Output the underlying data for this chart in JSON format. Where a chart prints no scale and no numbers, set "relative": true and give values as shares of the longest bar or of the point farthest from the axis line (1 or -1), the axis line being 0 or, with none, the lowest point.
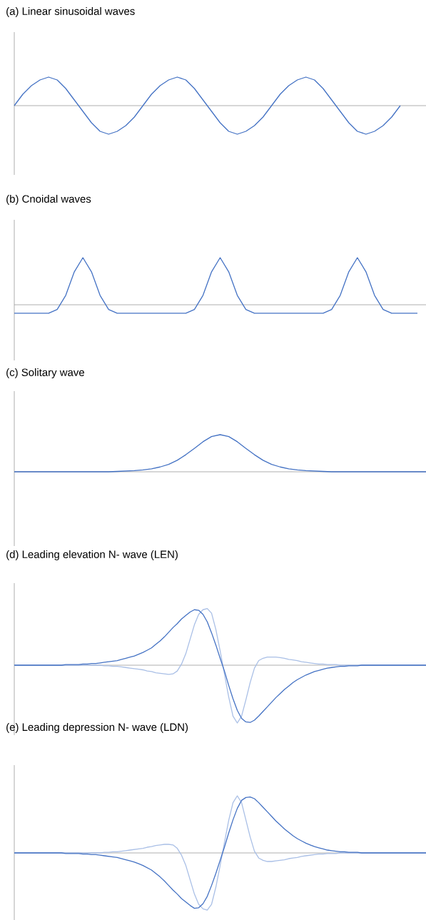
{
  "chart_data": [
    {
      "type": "line",
      "title": "(a)  Linear sinusoidal waves",
      "relative": true,
      "categories": [
        null,
        null,
        null,
        null,
        null,
        null,
        null,
        null,
        null,
        null,
        null,
        null,
        null,
        null,
        null,
        null,
        null,
        null,
        null,
        null,
        null,
        null,
        null,
        null,
        null,
        null,
        null,
        null,
        null,
        null,
        null,
        null,
        null,
        null,
        null,
        null,
        null,
        null,
        null,
        null,
        null,
        null,
        null,
        null,
        null,
        null,
        null,
        null,
        null
      ],
      "series": [
        {
          "color": "#4472c4",
          "values": [
            0,
            0.4,
            0.7,
            0.9,
            1,
            0.9,
            0.6,
            0.2,
            -0.2,
            -0.6,
            -0.9,
            -1,
            -0.9,
            -0.7,
            -0.4,
            0,
            0.4,
            0.7,
            0.9,
            1,
            0.9,
            0.6,
            0.2,
            -0.2,
            -0.6,
            -0.9,
            -1,
            -0.9,
            -0.7,
            -0.4,
            0,
            0.4,
            0.7,
            0.9,
            1,
            0.9,
            0.6,
            0.2,
            -0.2,
            -0.6,
            -0.9,
            -1,
            -0.9,
            -0.7,
            -0.4,
            0,
            null,
            null,
            null
          ]
        }
      ]
    },
    {
      "type": "line",
      "title": "(b)  Cnoidal waves",
      "relative": true,
      "categories": [
        null,
        null,
        null,
        null,
        null,
        null,
        null,
        null,
        null,
        null,
        null,
        null,
        null,
        null,
        null,
        null,
        null,
        null,
        null,
        null,
        null,
        null,
        null,
        null,
        null,
        null,
        null,
        null,
        null,
        null,
        null,
        null,
        null,
        null,
        null,
        null,
        null,
        null,
        null,
        null,
        null,
        null,
        null,
        null,
        null,
        null,
        null,
        null,
        null
      ],
      "series": [
        {
          "color": "#4472c4",
          "values": [
            -0.18,
            -0.18,
            -0.18,
            -0.18,
            -0.18,
            -0.1,
            0.2,
            0.7,
            1,
            0.7,
            0.2,
            -0.1,
            -0.18,
            -0.18,
            -0.18,
            -0.18,
            -0.18,
            -0.18,
            -0.18,
            -0.18,
            -0.18,
            -0.1,
            0.2,
            0.7,
            1,
            0.7,
            0.2,
            -0.1,
            -0.18,
            -0.18,
            -0.18,
            -0.18,
            -0.18,
            -0.18,
            -0.18,
            -0.18,
            -0.18,
            -0.1,
            0.2,
            0.7,
            1,
            0.7,
            0.2,
            -0.1,
            -0.18,
            -0.18,
            -0.18,
            -0.18,
            null
          ]
        }
      ]
    },
    {
      "type": "line",
      "title": "(c)  Solitary wave",
      "relative": true,
      "categories": [
        null,
        null,
        null,
        null,
        null,
        null,
        null,
        null,
        null,
        null,
        null,
        null,
        null,
        null,
        null,
        null,
        null,
        null,
        null,
        null,
        null,
        null,
        null,
        null,
        null,
        null,
        null,
        null,
        null,
        null,
        null,
        null,
        null,
        null,
        null,
        null,
        null,
        null,
        null,
        null,
        null,
        null,
        null,
        null,
        null,
        null,
        null,
        null,
        null
      ],
      "series": [
        {
          "color": "#4472c4",
          "values": [
            0,
            0,
            0,
            0,
            0,
            0,
            0,
            0,
            0,
            0,
            0,
            0,
            0.01,
            0.02,
            0.03,
            0.05,
            0.08,
            0.13,
            0.2,
            0.31,
            0.46,
            0.63,
            0.81,
            0.95,
            1,
            0.95,
            0.81,
            0.63,
            0.46,
            0.31,
            0.2,
            0.13,
            0.08,
            0.05,
            0.03,
            0.02,
            0.01,
            0,
            0,
            0,
            0,
            0,
            0,
            0,
            0,
            0,
            0,
            0,
            0
          ]
        }
      ]
    },
    {
      "type": "line",
      "title": "(d)  Leading elevation N- wave (LEN)",
      "relative": true,
      "categories": [
        null,
        null,
        null,
        null,
        null,
        null,
        null,
        null,
        null,
        null,
        null,
        null,
        null,
        null,
        null,
        null,
        null,
        null,
        null,
        null,
        null,
        null,
        null,
        null,
        null,
        null,
        null,
        null,
        null,
        null,
        null,
        null,
        null,
        null,
        null,
        null,
        null,
        null,
        null,
        null,
        null,
        null,
        null,
        null,
        null,
        null,
        null,
        null,
        null,
        null,
        null,
        null,
        null,
        null,
        null,
        null,
        null,
        null,
        null,
        null,
        null,
        null,
        null,
        null,
        null,
        null,
        null,
        null,
        null,
        null,
        null,
        null,
        null,
        null,
        null,
        null,
        null,
        null,
        null,
        null,
        null,
        null,
        null,
        null,
        null,
        null,
        null,
        null,
        null,
        null,
        null,
        null,
        null,
        null,
        null,
        null,
        null
      ],
      "series": [
        {
          "color": "#a9bfe6",
          "values": [
            0,
            0,
            0,
            0,
            0,
            0,
            0,
            0,
            0,
            0,
            0,
            0,
            0,
            0,
            0,
            0,
            0,
            0,
            0,
            0,
            0,
            -0.01,
            -0.01,
            -0.02,
            -0.02,
            -0.03,
            -0.04,
            -0.05,
            -0.06,
            -0.07,
            -0.08,
            -0.1,
            -0.11,
            -0.13,
            -0.14,
            -0.15,
            -0.16,
            -0.15,
            -0.1,
            0.02,
            0.2,
            0.45,
            0.7,
            0.88,
            0.96,
            0.98,
            0.9,
            0.62,
            0.25,
            -0.15,
            -0.55,
            -0.88,
            -1,
            -0.88,
            -0.6,
            -0.3,
            -0.05,
            0.08,
            0.12,
            0.14,
            0.14,
            0.14,
            0.13,
            0.12,
            0.1,
            0.09,
            0.08,
            0.06,
            0.05,
            0.04,
            0.03,
            0.02,
            0.02,
            0.01,
            0.01,
            0.01,
            0,
            0,
            0,
            0,
            0,
            0,
            0,
            0,
            0,
            0,
            0,
            0,
            0,
            0,
            0,
            0,
            0,
            0,
            0,
            0,
            0
          ]
        },
        {
          "color": "#4472c4",
          "values": [
            0,
            0,
            0,
            0,
            0,
            0,
            0,
            0,
            0,
            0,
            0,
            0,
            0.01,
            0.01,
            0.01,
            0.01,
            0.02,
            0.02,
            0.03,
            0.03,
            0.04,
            0.05,
            0.06,
            0.07,
            0.08,
            0.1,
            0.12,
            0.14,
            0.16,
            0.19,
            0.22,
            0.26,
            0.3,
            0.36,
            0.42,
            0.49,
            0.57,
            0.65,
            0.72,
            0.8,
            0.86,
            0.92,
            0.96,
            0.95,
            0.88,
            0.75,
            0.56,
            0.35,
            0.12,
            -0.1,
            -0.35,
            -0.58,
            -0.78,
            -0.92,
            -0.98,
            -0.99,
            -0.95,
            -0.88,
            -0.8,
            -0.72,
            -0.64,
            -0.56,
            -0.49,
            -0.42,
            -0.36,
            -0.3,
            -0.25,
            -0.21,
            -0.17,
            -0.14,
            -0.11,
            -0.09,
            -0.07,
            -0.05,
            -0.04,
            -0.03,
            -0.02,
            -0.02,
            -0.01,
            -0.01,
            -0.01,
            0,
            0,
            0,
            0,
            0,
            0,
            0,
            0,
            0,
            0,
            0,
            0,
            0,
            0,
            0,
            0
          ]
        }
      ]
    },
    {
      "type": "line",
      "title": "(e)  Leading depression N- wave (LDN)",
      "relative": true,
      "categories": [
        null,
        null,
        null,
        null,
        null,
        null,
        null,
        null,
        null,
        null,
        null,
        null,
        null,
        null,
        null,
        null,
        null,
        null,
        null,
        null,
        null,
        null,
        null,
        null,
        null,
        null,
        null,
        null,
        null,
        null,
        null,
        null,
        null,
        null,
        null,
        null,
        null,
        null,
        null,
        null,
        null,
        null,
        null,
        null,
        null,
        null,
        null,
        null,
        null,
        null,
        null,
        null,
        null,
        null,
        null,
        null,
        null,
        null,
        null,
        null,
        null,
        null,
        null,
        null,
        null,
        null,
        null,
        null,
        null,
        null,
        null,
        null,
        null,
        null,
        null,
        null,
        null,
        null,
        null,
        null,
        null,
        null,
        null,
        null,
        null,
        null,
        null,
        null,
        null,
        null,
        null,
        null,
        null,
        null,
        null,
        null,
        null
      ],
      "series": [
        {
          "color": "#a9bfe6",
          "values": [
            0,
            0,
            0,
            0,
            0,
            0,
            0,
            0,
            0,
            0,
            0,
            0,
            0,
            0,
            0,
            0,
            0,
            0,
            0,
            0,
            0,
            0.01,
            0.01,
            0.02,
            0.02,
            0.03,
            0.04,
            0.05,
            0.06,
            0.07,
            0.08,
            0.1,
            0.11,
            0.13,
            0.14,
            0.15,
            0.15,
            0.14,
            0.08,
            -0.04,
            -0.22,
            -0.47,
            -0.72,
            -0.9,
            -0.98,
            -1,
            -0.9,
            -0.6,
            -0.22,
            0.18,
            0.57,
            0.88,
            1,
            0.88,
            0.58,
            0.28,
            0.03,
            -0.09,
            -0.13,
            -0.15,
            -0.15,
            -0.14,
            -0.13,
            -0.12,
            -0.1,
            -0.09,
            -0.08,
            -0.06,
            -0.05,
            -0.04,
            -0.03,
            -0.02,
            -0.02,
            -0.01,
            -0.01,
            -0.01,
            0,
            0,
            0,
            0,
            0,
            0,
            0,
            0,
            0,
            0,
            0,
            0,
            0,
            0,
            0,
            0,
            0,
            0,
            0,
            0,
            0
          ]
        },
        {
          "color": "#4472c4",
          "values": [
            0,
            0,
            0,
            0,
            0,
            0,
            0,
            0,
            0,
            0,
            0,
            0,
            -0.01,
            -0.01,
            -0.01,
            -0.01,
            -0.02,
            -0.02,
            -0.03,
            -0.03,
            -0.04,
            -0.05,
            -0.06,
            -0.07,
            -0.08,
            -0.1,
            -0.12,
            -0.14,
            -0.16,
            -0.19,
            -0.22,
            -0.26,
            -0.3,
            -0.36,
            -0.42,
            -0.49,
            -0.57,
            -0.65,
            -0.72,
            -0.8,
            -0.86,
            -0.92,
            -0.97,
            -0.96,
            -0.89,
            -0.76,
            -0.57,
            -0.36,
            -0.13,
            0.1,
            0.35,
            0.58,
            0.78,
            0.92,
            0.97,
            0.98,
            0.95,
            0.88,
            0.8,
            0.72,
            0.64,
            0.56,
            0.49,
            0.42,
            0.36,
            0.3,
            0.25,
            0.21,
            0.17,
            0.14,
            0.11,
            0.09,
            0.07,
            0.05,
            0.04,
            0.03,
            0.02,
            0.02,
            0.01,
            0.01,
            0.01,
            0,
            0,
            0,
            0,
            0,
            0,
            0,
            0,
            0,
            0,
            0,
            0,
            0,
            0,
            0,
            0
          ]
        }
      ]
    }
  ]
}
